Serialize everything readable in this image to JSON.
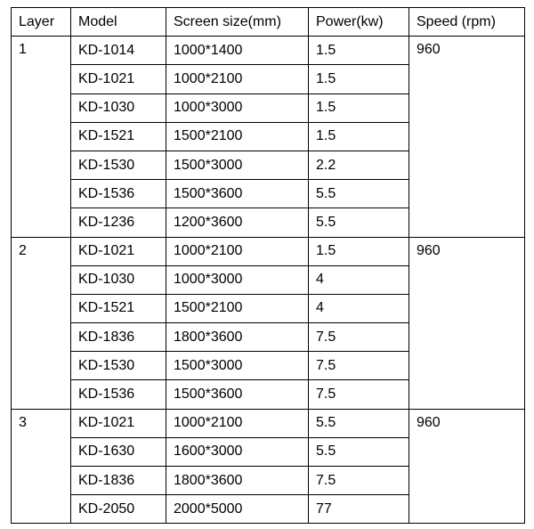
{
  "table": {
    "header": [
      "Layer",
      "Model",
      "Screen size(mm)",
      "Power(kw)",
      "Speed (rpm)"
    ],
    "groups": [
      {
        "layer": "1",
        "speed": "960",
        "rows": [
          [
            "KD-1014",
            "1000*1400",
            "1.5"
          ],
          [
            "KD-1021",
            "1000*2100",
            "1.5"
          ],
          [
            "KD-1030",
            "1000*3000",
            "1.5"
          ],
          [
            "KD-1521",
            "1500*2100",
            "1.5"
          ],
          [
            "KD-1530",
            "1500*3000",
            "2.2"
          ],
          [
            "KD-1536",
            "1500*3600",
            "5.5"
          ],
          [
            "KD-1236",
            "1200*3600",
            "5.5"
          ]
        ]
      },
      {
        "layer": "2",
        "speed": "960",
        "rows": [
          [
            "KD-1021",
            "1000*2100",
            "1.5"
          ],
          [
            "KD-1030",
            "1000*3000",
            "4"
          ],
          [
            "KD-1521",
            "1500*2100",
            "4"
          ],
          [
            "KD-1836",
            "1800*3600",
            "7.5"
          ],
          [
            "KD-1530",
            "1500*3000",
            "7.5"
          ],
          [
            "KD-1536",
            "1500*3600",
            "7.5"
          ]
        ]
      },
      {
        "layer": "3",
        "speed": "960",
        "rows": [
          [
            "KD-1021",
            "1000*2100",
            "5.5"
          ],
          [
            "KD-1630",
            "1600*3000",
            "5.5"
          ],
          [
            "KD-1836",
            "1800*3600",
            "7.5"
          ],
          [
            "KD-2050",
            "2000*5000",
            "77"
          ]
        ]
      }
    ]
  }
}
